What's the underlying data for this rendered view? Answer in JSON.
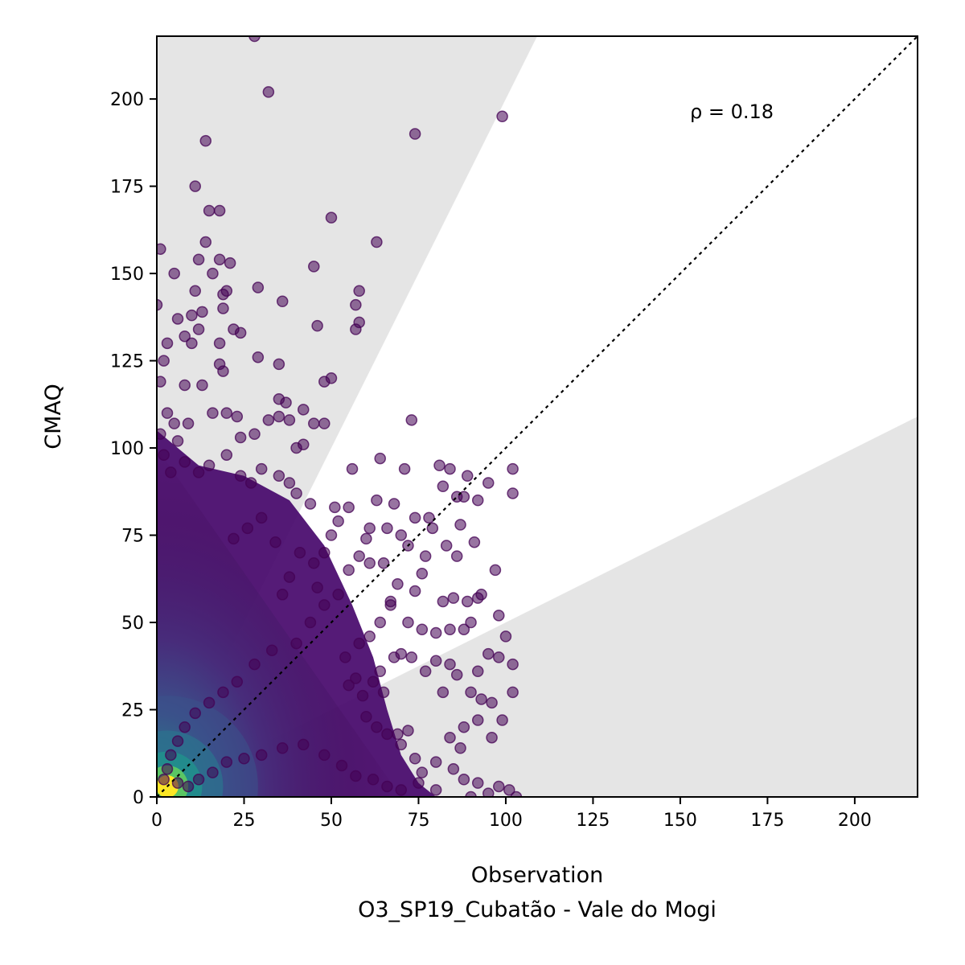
{
  "chart_data": {
    "type": "scatter",
    "title": "",
    "xlabel": "Observation",
    "xlabel_sub": "O3_SP19_Cubatão - Vale do Mogi",
    "ylabel": "CMAQ",
    "xlim": [
      0,
      218
    ],
    "ylim": [
      0,
      218
    ],
    "xticks": [
      0,
      25,
      50,
      75,
      100,
      125,
      150,
      175,
      200
    ],
    "yticks": [
      0,
      25,
      50,
      75,
      100,
      125,
      150,
      175,
      200
    ],
    "annotation": "ρ = 0.18",
    "grid": false,
    "legend": "none",
    "reference_line": {
      "slope": 1,
      "style": "dotted",
      "color": "#000000"
    },
    "shaded_regions": [
      {
        "description": "above factor-2 band",
        "lower_slope": 2,
        "color": "#e5e5e5"
      },
      {
        "description": "below factor-2 band",
        "upper_slope": 0.5,
        "color": "#e5e5e5"
      }
    ],
    "colormap": "viridis",
    "point_color_low_density": "#440154",
    "point_color_high_density": "#fde725",
    "points": [
      [
        28,
        218
      ],
      [
        32,
        202
      ],
      [
        99,
        195
      ],
      [
        74,
        190
      ],
      [
        14,
        188
      ],
      [
        11,
        175
      ],
      [
        15,
        168
      ],
      [
        18,
        168
      ],
      [
        50,
        166
      ],
      [
        63,
        159
      ],
      [
        14,
        159
      ],
      [
        1,
        157
      ],
      [
        45,
        152
      ],
      [
        18,
        154
      ],
      [
        21,
        153
      ],
      [
        12,
        154
      ],
      [
        16,
        150
      ],
      [
        5,
        150
      ],
      [
        29,
        146
      ],
      [
        11,
        145
      ],
      [
        20,
        145
      ],
      [
        58,
        145
      ],
      [
        19,
        144
      ],
      [
        36,
        142
      ],
      [
        57,
        141
      ],
      [
        0,
        141
      ],
      [
        19,
        140
      ],
      [
        13,
        139
      ],
      [
        10,
        138
      ],
      [
        6,
        137
      ],
      [
        58,
        136
      ],
      [
        46,
        135
      ],
      [
        57,
        134
      ],
      [
        12,
        134
      ],
      [
        22,
        134
      ],
      [
        24,
        133
      ],
      [
        8,
        132
      ],
      [
        10,
        130
      ],
      [
        3,
        130
      ],
      [
        18,
        130
      ],
      [
        29,
        126
      ],
      [
        2,
        125
      ],
      [
        18,
        124
      ],
      [
        35,
        124
      ],
      [
        19,
        122
      ],
      [
        50,
        120
      ],
      [
        1,
        119
      ],
      [
        48,
        119
      ],
      [
        8,
        118
      ],
      [
        13,
        118
      ],
      [
        35,
        114
      ],
      [
        37,
        113
      ],
      [
        42,
        111
      ],
      [
        45,
        107
      ],
      [
        48,
        107
      ],
      [
        73,
        108
      ],
      [
        16,
        110
      ],
      [
        20,
        110
      ],
      [
        23,
        109
      ],
      [
        32,
        108
      ],
      [
        35,
        109
      ],
      [
        38,
        108
      ],
      [
        5,
        107
      ],
      [
        24,
        103
      ],
      [
        28,
        104
      ],
      [
        40,
        100
      ],
      [
        42,
        101
      ],
      [
        64,
        97
      ],
      [
        56,
        94
      ],
      [
        71,
        94
      ],
      [
        81,
        95
      ],
      [
        84,
        94
      ],
      [
        89,
        92
      ],
      [
        95,
        90
      ],
      [
        102,
        94
      ],
      [
        88,
        86
      ],
      [
        102,
        87
      ],
      [
        86,
        86
      ],
      [
        82,
        89
      ],
      [
        92,
        85
      ],
      [
        51,
        83
      ],
      [
        55,
        83
      ],
      [
        63,
        85
      ],
      [
        68,
        84
      ],
      [
        74,
        80
      ],
      [
        78,
        80
      ],
      [
        79,
        77
      ],
      [
        66,
        77
      ],
      [
        70,
        75
      ],
      [
        87,
        78
      ],
      [
        61,
        77
      ],
      [
        60,
        74
      ],
      [
        91,
        73
      ],
      [
        72,
        72
      ],
      [
        97,
        65
      ],
      [
        83,
        72
      ],
      [
        86,
        69
      ],
      [
        77,
        69
      ],
      [
        76,
        64
      ],
      [
        89,
        56
      ],
      [
        92,
        57
      ],
      [
        85,
        57
      ],
      [
        93,
        58
      ],
      [
        74,
        59
      ],
      [
        82,
        56
      ],
      [
        98,
        52
      ],
      [
        67,
        56
      ],
      [
        100,
        46
      ],
      [
        80,
        47
      ],
      [
        72,
        50
      ],
      [
        76,
        48
      ],
      [
        84,
        48
      ],
      [
        88,
        48
      ],
      [
        90,
        50
      ],
      [
        102,
        38
      ],
      [
        98,
        40
      ],
      [
        95,
        41
      ],
      [
        92,
        36
      ],
      [
        86,
        35
      ],
      [
        84,
        38
      ],
      [
        80,
        39
      ],
      [
        77,
        36
      ],
      [
        73,
        40
      ],
      [
        70,
        41
      ],
      [
        68,
        40
      ],
      [
        64,
        36
      ],
      [
        62,
        33
      ],
      [
        57,
        34
      ],
      [
        55,
        32
      ],
      [
        82,
        30
      ],
      [
        90,
        30
      ],
      [
        93,
        28
      ],
      [
        96,
        27
      ],
      [
        102,
        30
      ],
      [
        99,
        22
      ],
      [
        92,
        22
      ],
      [
        88,
        20
      ],
      [
        84,
        17
      ],
      [
        87,
        14
      ],
      [
        96,
        17
      ],
      [
        74,
        11
      ],
      [
        70,
        15
      ],
      [
        80,
        10
      ],
      [
        76,
        7
      ],
      [
        85,
        8
      ],
      [
        88,
        5
      ],
      [
        92,
        4
      ],
      [
        98,
        3
      ],
      [
        101,
        2
      ],
      [
        103,
        0
      ],
      [
        95,
        1
      ],
      [
        90,
        0
      ],
      [
        80,
        2
      ],
      [
        75,
        4
      ],
      [
        60,
        23
      ],
      [
        63,
        20
      ],
      [
        66,
        18
      ],
      [
        69,
        18
      ],
      [
        72,
        19
      ],
      [
        65,
        30
      ],
      [
        59,
        29
      ],
      [
        54,
        40
      ],
      [
        58,
        44
      ],
      [
        61,
        46
      ],
      [
        64,
        50
      ],
      [
        67,
        55
      ],
      [
        69,
        61
      ],
      [
        65,
        67
      ],
      [
        61,
        67
      ],
      [
        58,
        69
      ],
      [
        55,
        65
      ],
      [
        52,
        58
      ],
      [
        48,
        55
      ],
      [
        46,
        60
      ],
      [
        45,
        67
      ],
      [
        48,
        70
      ],
      [
        50,
        75
      ],
      [
        52,
        79
      ],
      [
        44,
        84
      ],
      [
        40,
        87
      ],
      [
        38,
        90
      ],
      [
        35,
        92
      ],
      [
        30,
        94
      ],
      [
        27,
        90
      ],
      [
        24,
        92
      ],
      [
        20,
        98
      ],
      [
        15,
        95
      ],
      [
        12,
        93
      ],
      [
        8,
        96
      ],
      [
        4,
        93
      ],
      [
        2,
        98
      ],
      [
        1,
        104
      ],
      [
        3,
        110
      ],
      [
        6,
        102
      ],
      [
        9,
        107
      ],
      [
        30,
        80
      ],
      [
        26,
        77
      ],
      [
        22,
        74
      ],
      [
        34,
        73
      ],
      [
        41,
        70
      ],
      [
        38,
        63
      ],
      [
        36,
        58
      ],
      [
        44,
        50
      ],
      [
        40,
        44
      ],
      [
        33,
        42
      ],
      [
        28,
        38
      ],
      [
        23,
        33
      ],
      [
        19,
        30
      ],
      [
        15,
        27
      ],
      [
        11,
        24
      ],
      [
        8,
        20
      ],
      [
        6,
        16
      ],
      [
        4,
        12
      ],
      [
        3,
        8
      ],
      [
        2,
        5
      ],
      [
        6,
        4
      ],
      [
        9,
        3
      ],
      [
        12,
        5
      ],
      [
        16,
        7
      ],
      [
        20,
        10
      ],
      [
        25,
        11
      ],
      [
        30,
        12
      ],
      [
        36,
        14
      ],
      [
        42,
        15
      ],
      [
        48,
        12
      ],
      [
        53,
        9
      ],
      [
        57,
        6
      ],
      [
        62,
        5
      ],
      [
        66,
        3
      ],
      [
        70,
        2
      ]
    ]
  }
}
